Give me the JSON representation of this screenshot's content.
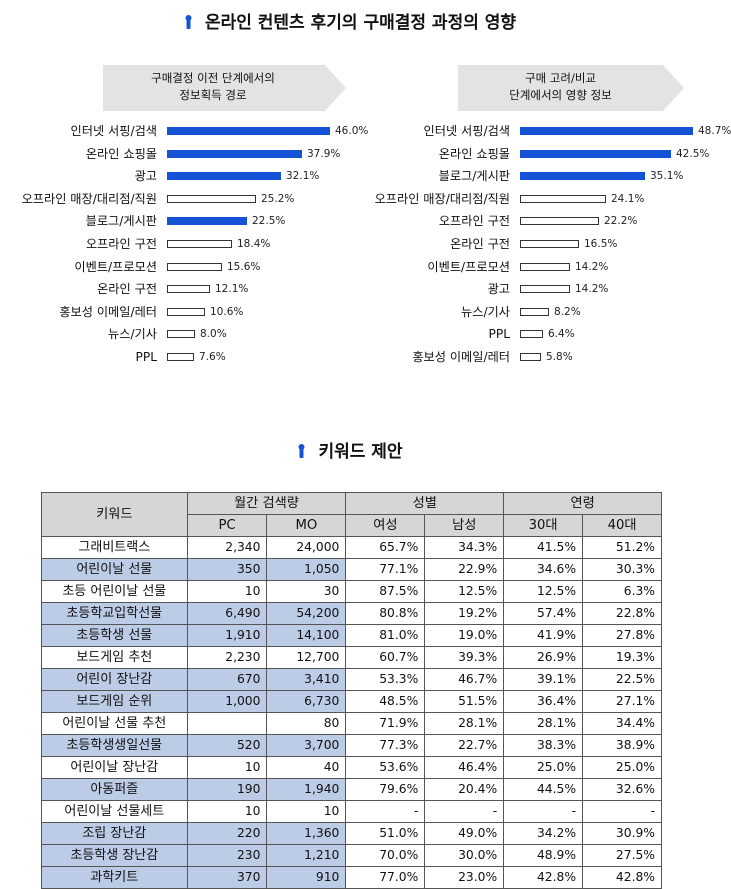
{
  "section1": {
    "title": "온라인 컨텐츠 후기의 구매결정 과정의 영향"
  },
  "left_panel": {
    "heading_line1": "구매결정 이전 단계에서의",
    "heading_line2": "정보획득 경로",
    "items": [
      {
        "label": "인터넷 서핑/검색",
        "value": "46.0%",
        "pct": 46.0,
        "style": "blue"
      },
      {
        "label": "온라인 쇼핑몰",
        "value": "37.9%",
        "pct": 37.9,
        "style": "blue"
      },
      {
        "label": "광고",
        "value": "32.1%",
        "pct": 32.1,
        "style": "blue"
      },
      {
        "label": "오프라인 매장/대리점/직원",
        "value": "25.2%",
        "pct": 25.2,
        "style": "white"
      },
      {
        "label": "블로그/게시판",
        "value": "22.5%",
        "pct": 22.5,
        "style": "blue"
      },
      {
        "label": "오프라인 구전",
        "value": "18.4%",
        "pct": 18.4,
        "style": "white"
      },
      {
        "label": "이벤트/프로모션",
        "value": "15.6%",
        "pct": 15.6,
        "style": "white"
      },
      {
        "label": "온라인 구전",
        "value": "12.1%",
        "pct": 12.1,
        "style": "white"
      },
      {
        "label": "홍보성 이메일/레터",
        "value": "10.6%",
        "pct": 10.6,
        "style": "white"
      },
      {
        "label": "뉴스/기사",
        "value": "8.0%",
        "pct": 8.0,
        "style": "white"
      },
      {
        "label": "PPL",
        "value": "7.6%",
        "pct": 7.6,
        "style": "white"
      }
    ]
  },
  "right_panel": {
    "heading_line1": "구매 고려/비교",
    "heading_line2": "단계에서의 영향 정보",
    "items": [
      {
        "label": "인터넷 서핑/검색",
        "value": "48.7%",
        "pct": 48.7,
        "style": "blue"
      },
      {
        "label": "온라인 쇼핑몰",
        "value": "42.5%",
        "pct": 42.5,
        "style": "blue"
      },
      {
        "label": "블로그/게시판",
        "value": "35.1%",
        "pct": 35.1,
        "style": "blue"
      },
      {
        "label": "오프라인 매장/대리점/직원",
        "value": "24.1%",
        "pct": 24.1,
        "style": "white"
      },
      {
        "label": "오프라인 구전",
        "value": "22.2%",
        "pct": 22.2,
        "style": "white"
      },
      {
        "label": "온라인 구전",
        "value": "16.5%",
        "pct": 16.5,
        "style": "white"
      },
      {
        "label": "이벤트/프로모션",
        "value": "14.2%",
        "pct": 14.2,
        "style": "white"
      },
      {
        "label": "광고",
        "value": "14.2%",
        "pct": 14.2,
        "style": "white"
      },
      {
        "label": "뉴스/기사",
        "value": "8.2%",
        "pct": 8.2,
        "style": "white"
      },
      {
        "label": "PPL",
        "value": "6.4%",
        "pct": 6.4,
        "style": "white"
      },
      {
        "label": "홍보성 이메일/레터",
        "value": "5.8%",
        "pct": 5.8,
        "style": "white"
      }
    ]
  },
  "section2": {
    "title": "키워드 제안"
  },
  "table": {
    "header_keyword": "키워드",
    "group_search": "월간 검색량",
    "group_gender": "성별",
    "group_age": "연령",
    "col_pc": "PC",
    "col_mo": "MO",
    "col_female": "여성",
    "col_male": "남성",
    "col_30": "30대",
    "col_40": "40대",
    "rows": [
      {
        "kw": "그래비트랙스",
        "pc": "2,340",
        "mo": "24,000",
        "f": "65.7%",
        "m": "34.3%",
        "a30": "41.5%",
        "a40": "51.2%",
        "hl": false
      },
      {
        "kw": "어린이날 선물",
        "pc": "350",
        "mo": "1,050",
        "f": "77.1%",
        "m": "22.9%",
        "a30": "34.6%",
        "a40": "30.3%",
        "hl": true
      },
      {
        "kw": "초등 어린이날 선물",
        "pc": "10",
        "mo": "30",
        "f": "87.5%",
        "m": "12.5%",
        "a30": "12.5%",
        "a40": "6.3%",
        "hl": false
      },
      {
        "kw": "초등학교입학선물",
        "pc": "6,490",
        "mo": "54,200",
        "f": "80.8%",
        "m": "19.2%",
        "a30": "57.4%",
        "a40": "22.8%",
        "hl": true
      },
      {
        "kw": "초등학생 선물",
        "pc": "1,910",
        "mo": "14,100",
        "f": "81.0%",
        "m": "19.0%",
        "a30": "41.9%",
        "a40": "27.8%",
        "hl": true
      },
      {
        "kw": "보드게임 추천",
        "pc": "2,230",
        "mo": "12,700",
        "f": "60.7%",
        "m": "39.3%",
        "a30": "26.9%",
        "a40": "19.3%",
        "hl": false
      },
      {
        "kw": "어린이 장난감",
        "pc": "670",
        "mo": "3,410",
        "f": "53.3%",
        "m": "46.7%",
        "a30": "39.1%",
        "a40": "22.5%",
        "hl": true
      },
      {
        "kw": "보드게임 순위",
        "pc": "1,000",
        "mo": "6,730",
        "f": "48.5%",
        "m": "51.5%",
        "a30": "36.4%",
        "a40": "27.1%",
        "hl": true
      },
      {
        "kw": "어린이날 선물 추천",
        "pc": "",
        "mo": "80",
        "f": "71.9%",
        "m": "28.1%",
        "a30": "28.1%",
        "a40": "34.4%",
        "hl": false
      },
      {
        "kw": "초등학생생일선물",
        "pc": "520",
        "mo": "3,700",
        "f": "77.3%",
        "m": "22.7%",
        "a30": "38.3%",
        "a40": "38.9%",
        "hl": true
      },
      {
        "kw": "어린이날 장난감",
        "pc": "10",
        "mo": "40",
        "f": "53.6%",
        "m": "46.4%",
        "a30": "25.0%",
        "a40": "25.0%",
        "hl": false
      },
      {
        "kw": "아동퍼즐",
        "pc": "190",
        "mo": "1,940",
        "f": "79.6%",
        "m": "20.4%",
        "a30": "44.5%",
        "a40": "32.6%",
        "hl": true
      },
      {
        "kw": "어린이날 선물세트",
        "pc": "10",
        "mo": "10",
        "f": "-",
        "m": "-",
        "a30": "-",
        "a40": "-",
        "hl": false
      },
      {
        "kw": "조립 장난감",
        "pc": "220",
        "mo": "1,360",
        "f": "51.0%",
        "m": "49.0%",
        "a30": "34.2%",
        "a40": "30.9%",
        "hl": true
      },
      {
        "kw": "초등학생 장난감",
        "pc": "230",
        "mo": "1,210",
        "f": "70.0%",
        "m": "30.0%",
        "a30": "48.9%",
        "a40": "27.5%",
        "hl": true
      },
      {
        "kw": "과학키트",
        "pc": "370",
        "mo": "910",
        "f": "77.0%",
        "m": "23.0%",
        "a30": "42.8%",
        "a40": "42.8%",
        "hl": true
      }
    ]
  },
  "colors": {
    "bar_blue": "#1553d6",
    "row_highlight": "#bccbe6",
    "header_gray": "#d6d6d6",
    "pin_blue": "#1553d6"
  }
}
